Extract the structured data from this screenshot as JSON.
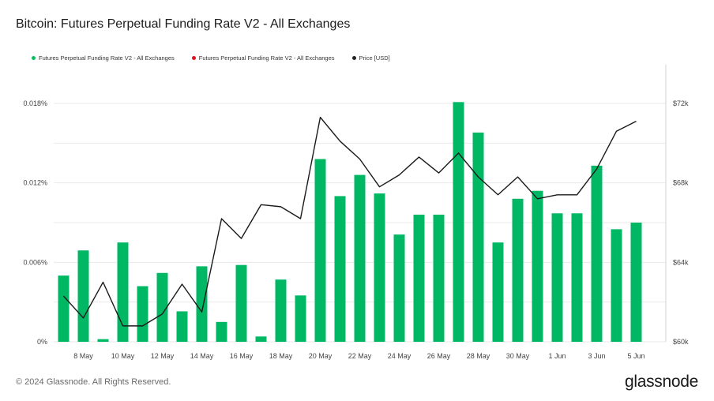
{
  "title": "Bitcoin: Futures Perpetual Funding Rate V2 - All Exchanges",
  "legend": [
    {
      "label": "Futures Perpetual Funding Rate V2 - All Exchanges",
      "color": "#0bbf5e"
    },
    {
      "label": "Futures Perpetual Funding Rate V2 - All Exchanges",
      "color": "#e0141e"
    },
    {
      "label": "Price [USD]",
      "color": "#222222"
    }
  ],
  "footer": "© 2024 Glassnode. All Rights Reserved.",
  "brand": "glassnode",
  "colors": {
    "bar": "#00b864",
    "price_line": "#1a1a1a",
    "grid": "#e9e9e9"
  },
  "chart_data": {
    "type": "bar",
    "x": [
      "7 May",
      "8 May",
      "9 May",
      "10 May",
      "11 May",
      "12 May",
      "13 May",
      "14 May",
      "15 May",
      "16 May",
      "17 May",
      "18 May",
      "19 May",
      "20 May",
      "21 May",
      "22 May",
      "23 May",
      "24 May",
      "25 May",
      "26 May",
      "27 May",
      "28 May",
      "29 May",
      "30 May",
      "31 May",
      "1 Jun",
      "2 Jun",
      "3 Jun",
      "4 Jun",
      "5 Jun"
    ],
    "x_tick_labels": [
      "8 May",
      "10 May",
      "12 May",
      "14 May",
      "16 May",
      "18 May",
      "20 May",
      "22 May",
      "24 May",
      "26 May",
      "28 May",
      "30 May",
      "1 Jun",
      "3 Jun",
      "5 Jun"
    ],
    "series": [
      {
        "name": "Futures Perpetual Funding Rate V2 - All Exchanges",
        "axis": "left",
        "values": [
          0.005,
          0.0069,
          0.0002,
          0.0075,
          0.0042,
          0.0052,
          0.0023,
          0.0057,
          0.0015,
          0.0058,
          0.0004,
          0.0047,
          0.0035,
          0.0138,
          0.011,
          0.0126,
          0.0112,
          0.0081,
          0.0096,
          0.0096,
          0.0181,
          0.0158,
          0.0075,
          0.0108,
          0.0114,
          0.0097,
          0.0097,
          0.0133,
          0.0085,
          0.009
        ]
      },
      {
        "name": "Price [USD]",
        "axis": "right",
        "values": [
          62300,
          61200,
          63000,
          60800,
          60800,
          61400,
          62900,
          61500,
          66200,
          65200,
          66900,
          66800,
          66200,
          71300,
          70100,
          69200,
          67800,
          68400,
          69300,
          68500,
          69500,
          68300,
          67400,
          68300,
          67200,
          67400,
          67400,
          68700,
          70600,
          71100
        ]
      }
    ],
    "left_axis": {
      "ylim": [
        0,
        0.018
      ],
      "ticks": [
        "0%",
        "0.006%",
        "0.012%",
        "0.018%"
      ]
    },
    "right_axis": {
      "ylim": [
        60000,
        72000
      ],
      "ticks": [
        "$60k",
        "$64k",
        "$68k",
        "$72k"
      ]
    },
    "grid": true,
    "legend_position": "top-left"
  }
}
